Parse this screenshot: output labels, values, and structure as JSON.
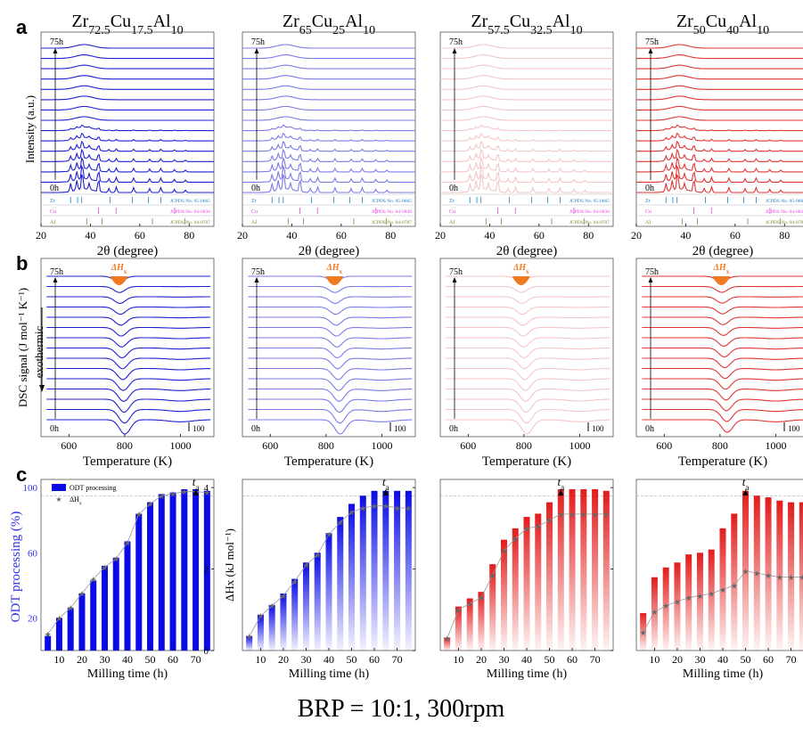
{
  "panel_labels": {
    "a": "a",
    "b": "b",
    "c": "c"
  },
  "compositions": [
    {
      "parts": [
        [
          "Zr",
          ""
        ],
        [
          "72.5",
          "sub"
        ],
        [
          "Cu",
          ""
        ],
        [
          "17.5",
          "sub"
        ],
        [
          "Al",
          ""
        ],
        [
          "10",
          "sub"
        ]
      ]
    },
    {
      "parts": [
        [
          "Zr",
          ""
        ],
        [
          "65",
          "sub"
        ],
        [
          "Cu",
          ""
        ],
        [
          "25",
          "sub"
        ],
        [
          "Al",
          ""
        ],
        [
          "10",
          "sub"
        ]
      ]
    },
    {
      "parts": [
        [
          "Zr",
          ""
        ],
        [
          "57.5",
          "sub"
        ],
        [
          "Cu",
          ""
        ],
        [
          "32.5",
          "sub"
        ],
        [
          "Al",
          ""
        ],
        [
          "10",
          "sub"
        ]
      ]
    },
    {
      "parts": [
        [
          "Zr",
          ""
        ],
        [
          "50",
          "sub"
        ],
        [
          "Cu",
          ""
        ],
        [
          "40",
          "sub"
        ],
        [
          "Al",
          ""
        ],
        [
          "10",
          "sub"
        ]
      ]
    }
  ],
  "colors": {
    "blue": "#1f1fd6",
    "lavender": "#7b7bea",
    "pink": "#f4c6c6",
    "red": "#e23535",
    "orange": "#f07a20",
    "zr_ref": "#1d7fc1",
    "cu_ref": "#e040e0",
    "al_ref": "#7a8a2a",
    "bar_blue": "#0a0ae6",
    "bar_red": "#e31b1b",
    "axis_blue": "#2f2fe8"
  },
  "row_a": {
    "ylabel": "Intensity (a.u.)",
    "xlabel": "2θ (degree)",
    "top_label": "75h",
    "bottom_label": "0h",
    "xticks": [
      "20",
      "40",
      "60",
      "80"
    ],
    "refs": [
      {
        "element": "Zr",
        "jcpds": "JCPDS No. 05-0665"
      },
      {
        "element": "Cu",
        "jcpds": "JCPDS No. 04-0836"
      },
      {
        "element": "Al",
        "jcpds": "JCPDS No. 04-0787"
      }
    ]
  },
  "row_b": {
    "ylabel": "DSC signal (J mol⁻¹ K⁻¹)",
    "exo_label": "exothermic",
    "xlabel": "Temperature (K)",
    "top_label": "75h",
    "bottom_label": "0h",
    "peak_label": "ΔHx",
    "scale_label": "100",
    "xticks": [
      "600",
      "800",
      "1000"
    ]
  },
  "row_c": {
    "ylabel_left": "ODT processing (%)",
    "ylabel_right": "ΔHx (kJ mol⁻¹)",
    "xlabel": "Milling time (h)",
    "ta_label": "ta",
    "legend": [
      "ODT processing",
      "ΔHx"
    ],
    "xticks": [
      "10",
      "20",
      "30",
      "40",
      "50",
      "60",
      "70"
    ],
    "yticks_left": [
      "20",
      "60",
      "100"
    ],
    "yticks_right": [
      "0",
      "2",
      "4"
    ]
  },
  "chart_data": [
    {
      "type": "bar",
      "title": "Zr72.5Cu17.5Al10",
      "xlabel": "Milling time (h)",
      "ylabel": "ODT processing (%)",
      "x": [
        5,
        10,
        15,
        20,
        25,
        30,
        35,
        40,
        45,
        50,
        55,
        60,
        65,
        70,
        75
      ],
      "series": [
        {
          "name": "ODT processing",
          "values": [
            9,
            20,
            26,
            35,
            43,
            52,
            57,
            67,
            84,
            91,
            96,
            97,
            99,
            99,
            98
          ]
        },
        {
          "name": "ΔHx",
          "values": [
            0.4,
            0.8,
            1.05,
            1.4,
            1.75,
            2.05,
            2.25,
            2.65,
            3.35,
            3.6,
            3.8,
            3.85,
            3.9,
            3.9,
            3.88
          ]
        }
      ],
      "ylim": [
        0,
        105
      ],
      "ylim_right": [
        0,
        4.2
      ],
      "t_a": 70
    },
    {
      "type": "bar",
      "title": "Zr65Cu25Al10",
      "xlabel": "Milling time (h)",
      "ylabel": "ODT processing (%)",
      "x": [
        5,
        10,
        15,
        20,
        25,
        30,
        35,
        40,
        45,
        50,
        55,
        60,
        65,
        70,
        75
      ],
      "series": [
        {
          "name": "ODT processing",
          "values": [
            9,
            22,
            28,
            35,
            44,
            54,
            60,
            72,
            82,
            90,
            95,
            98,
            98,
            98,
            98
          ]
        },
        {
          "name": "ΔHx",
          "values": [
            0.35,
            0.85,
            1.1,
            1.35,
            1.7,
            2.1,
            2.35,
            2.85,
            3.15,
            3.4,
            3.5,
            3.55,
            3.55,
            3.5,
            3.5
          ]
        }
      ],
      "ylim": [
        0,
        105
      ],
      "ylim_right": [
        0,
        4.2
      ],
      "t_a": 65
    },
    {
      "type": "bar",
      "title": "Zr57.5Cu32.5Al10",
      "xlabel": "Milling time (h)",
      "ylabel": "ODT processing (%)",
      "x": [
        5,
        10,
        15,
        20,
        25,
        30,
        35,
        40,
        45,
        50,
        55,
        60,
        65,
        70,
        75
      ],
      "series": [
        {
          "name": "ODT processing",
          "values": [
            8,
            27,
            32,
            36,
            53,
            68,
            75,
            82,
            84,
            91,
            99,
            99,
            99,
            99,
            98
          ]
        },
        {
          "name": "ΔHx",
          "values": [
            0.3,
            1.0,
            1.15,
            1.3,
            1.85,
            2.45,
            2.75,
            3.0,
            3.05,
            3.2,
            3.35,
            3.35,
            3.35,
            3.35,
            3.35
          ]
        }
      ],
      "ylim": [
        0,
        105
      ],
      "ylim_right": [
        0,
        4.2
      ],
      "t_a": 55
    },
    {
      "type": "bar",
      "title": "Zr50Cu40Al10",
      "xlabel": "Milling time (h)",
      "ylabel": "ODT processing (%)",
      "x": [
        5,
        10,
        15,
        20,
        25,
        30,
        35,
        40,
        45,
        50,
        55,
        60,
        65,
        70,
        75
      ],
      "series": [
        {
          "name": "ODT processing",
          "values": [
            23,
            45,
            51,
            54,
            59,
            60,
            62,
            75,
            84,
            98,
            95,
            94,
            92,
            91,
            91
          ]
        },
        {
          "name": "ΔHx",
          "values": [
            0.45,
            0.95,
            1.1,
            1.2,
            1.3,
            1.35,
            1.4,
            1.5,
            1.6,
            1.95,
            1.9,
            1.85,
            1.8,
            1.8,
            1.8
          ]
        }
      ],
      "ylim": [
        0,
        105
      ],
      "ylim_right": [
        0,
        4.2
      ],
      "t_a": 50
    }
  ],
  "footer": "BRP = 10:1, 300rpm"
}
